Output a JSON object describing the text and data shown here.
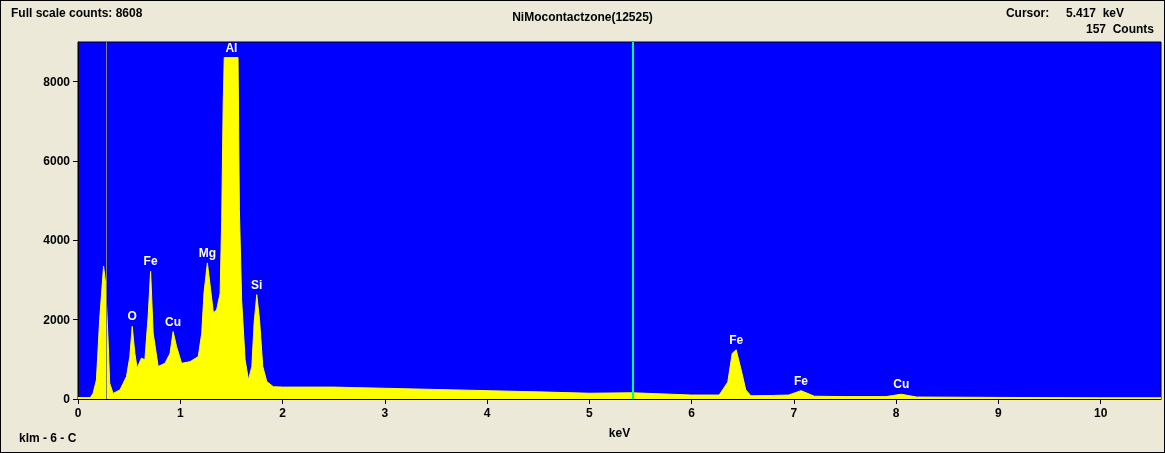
{
  "chart_data": {
    "type": "area",
    "title": "NiMocontactzone(12525)",
    "xlabel": "keV",
    "x": [
      0,
      0.12,
      0.147,
      0.18,
      0.212,
      0.25,
      0.27,
      0.294,
      0.31,
      0.343,
      0.41,
      0.474,
      0.507,
      0.53,
      0.556,
      0.578,
      0.62,
      0.654,
      0.686,
      0.71,
      0.735,
      0.784,
      0.85,
      0.9,
      0.93,
      0.964,
      1.013,
      1.095,
      1.176,
      1.21,
      1.232,
      1.265,
      1.297,
      1.324,
      1.356,
      1.39,
      1.405,
      1.42,
      1.43,
      1.565,
      1.578,
      1.6,
      1.634,
      1.667,
      1.7,
      1.722,
      1.748,
      1.775,
      1.807,
      1.846,
      1.91,
      2.0,
      2.5,
      3.0,
      3.5,
      4.0,
      4.5,
      5.0,
      5.417,
      6.0,
      6.27,
      6.354,
      6.397,
      6.436,
      6.485,
      6.53,
      6.58,
      6.8,
      6.95,
      7.07,
      7.2,
      7.5,
      7.9,
      8.05,
      8.2,
      9.0,
      10.0,
      10.59
    ],
    "series": [
      {
        "color": "#ffff00",
        "values": [
          35,
          35,
          140,
          480,
          2000,
          3350,
          2920,
          1490,
          400,
          140,
          230,
          565,
          1070,
          1830,
          1150,
          780,
          1030,
          990,
          2080,
          3220,
          1660,
          820,
          900,
          1150,
          1700,
          1320,
          900,
          940,
          1070,
          1660,
          2670,
          3430,
          2760,
          2170,
          2250,
          2670,
          4530,
          7480,
          8608,
          8608,
          4780,
          2500,
          990,
          480,
          820,
          1910,
          2630,
          2000,
          820,
          440,
          310,
          300,
          300,
          270,
          240,
          210,
          180,
          145,
          157,
          100,
          100,
          430,
          1150,
          1240,
          730,
          230,
          80,
          90,
          100,
          210,
          70,
          60,
          60,
          120,
          50,
          40,
          30,
          30
        ]
      }
    ],
    "xlim": [
      0,
      10.59
    ],
    "xticks": [
      0,
      1,
      2,
      3,
      4,
      5,
      6,
      7,
      8,
      9,
      10
    ],
    "ylim": [
      0,
      9000
    ],
    "yticks": [
      0,
      2000,
      4000,
      6000,
      8000
    ],
    "grid": false,
    "ref_lines": [
      {
        "axis": "x",
        "value": 5.417,
        "color": "#00ff80"
      },
      {
        "axis": "x",
        "value": 0.283,
        "color": "#808080"
      }
    ],
    "annotations": [
      "Full scale counts: 8608",
      "Cursor:     5.417  keV",
      "157  Counts",
      "klm - 6 - C",
      {
        "text": "O",
        "x": 0.53,
        "y": 1830
      },
      {
        "text": "Fe",
        "x": 0.71,
        "y": 3220
      },
      {
        "text": "Cu",
        "x": 0.93,
        "y": 1700
      },
      {
        "text": "Mg",
        "x": 1.265,
        "y": 3430
      },
      {
        "text": "Al",
        "x": 1.5,
        "y": 8608
      },
      {
        "text": "Si",
        "x": 1.748,
        "y": 2630
      },
      {
        "text": "Fe",
        "x": 6.436,
        "y": 1240
      },
      {
        "text": "Fe",
        "x": 7.07,
        "y": 210
      },
      {
        "text": "Cu",
        "x": 8.05,
        "y": 120
      }
    ]
  }
}
